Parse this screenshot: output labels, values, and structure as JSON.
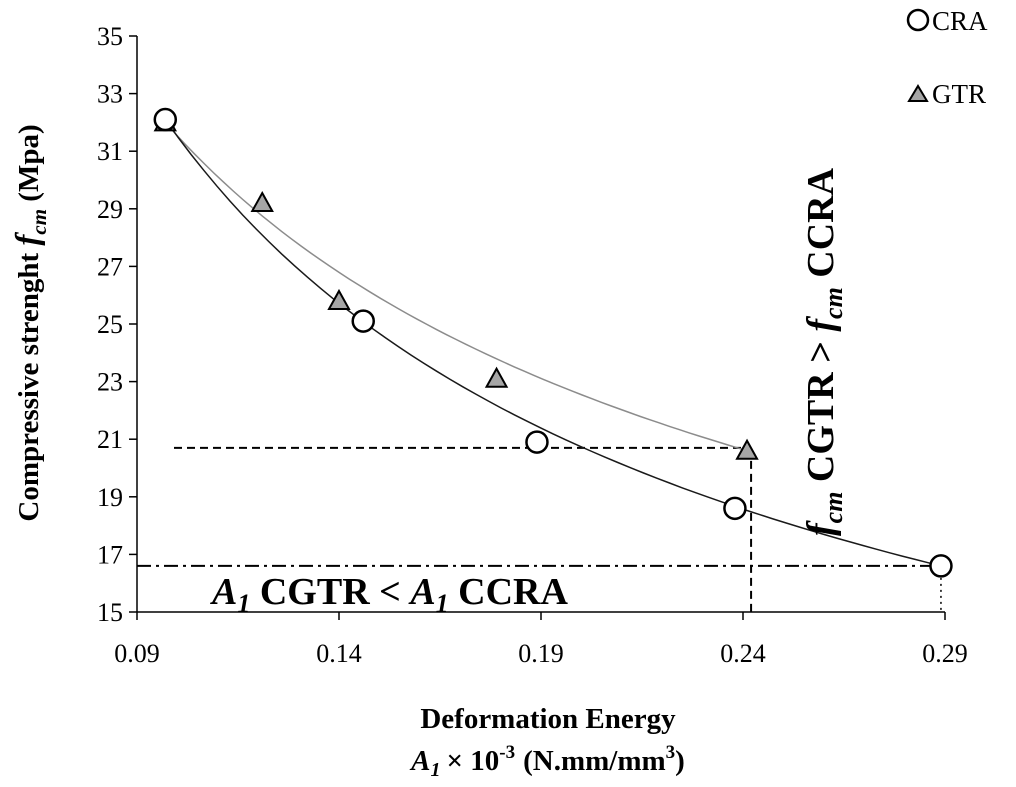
{
  "chart_data": {
    "type": "scatter",
    "title": "",
    "xlabel_line1": "Deformation Energy",
    "xlabel_line2": {
      "var": "A",
      "sub": "1",
      "times": "× 10",
      "exp": "-3",
      "units_pre": "(N.mm/mm",
      "units_exp": "3",
      "units_post": ")"
    },
    "ylabel": {
      "text": "Compressive strenght ",
      "var": "f",
      "sub": "cm",
      "units": "  (Mpa)"
    },
    "xlim": [
      0.09,
      0.29
    ],
    "ylim": [
      15,
      35
    ],
    "xticks": [
      "0.09",
      "0.14",
      "0.19",
      "0.24",
      "0.29"
    ],
    "yticks": [
      "15",
      "17",
      "19",
      "21",
      "23",
      "25",
      "27",
      "29",
      "31",
      "33",
      "35"
    ],
    "legend_position": "top-right",
    "series": [
      {
        "name": "CRA",
        "marker": "circle",
        "color": "#ffffff",
        "points": [
          [
            0.097,
            32.1
          ],
          [
            0.146,
            25.1
          ],
          [
            0.189,
            20.9
          ],
          [
            0.238,
            18.6
          ],
          [
            0.289,
            16.6
          ]
        ],
        "trend_color": "#1a1a1a"
      },
      {
        "name": "GTR",
        "marker": "triangle",
        "color": "#a6a6a6",
        "points": [
          [
            0.097,
            32.0
          ],
          [
            0.121,
            29.2
          ],
          [
            0.14,
            25.8
          ],
          [
            0.179,
            23.1
          ],
          [
            0.241,
            20.6
          ]
        ],
        "trend_color": "#8c8c8c"
      }
    ],
    "reference_lines": {
      "h_gtr_y": 20.7,
      "v_gtr_x": 0.242,
      "h_cra_y": 16.6,
      "v_cra_x": 0.289
    },
    "annotations": {
      "bottom": {
        "a_left": "A",
        "sub_left": "1",
        "mid": " CGTR  < ",
        "a_right": "A",
        "sub_right": "1",
        "end": "  CCRA"
      },
      "vertical": {
        "f1": "f",
        "sub1": "cm",
        "mid": "  CGTR > ",
        "f2": "f",
        "sub2": "cm",
        "end": "  CCRA"
      }
    }
  }
}
